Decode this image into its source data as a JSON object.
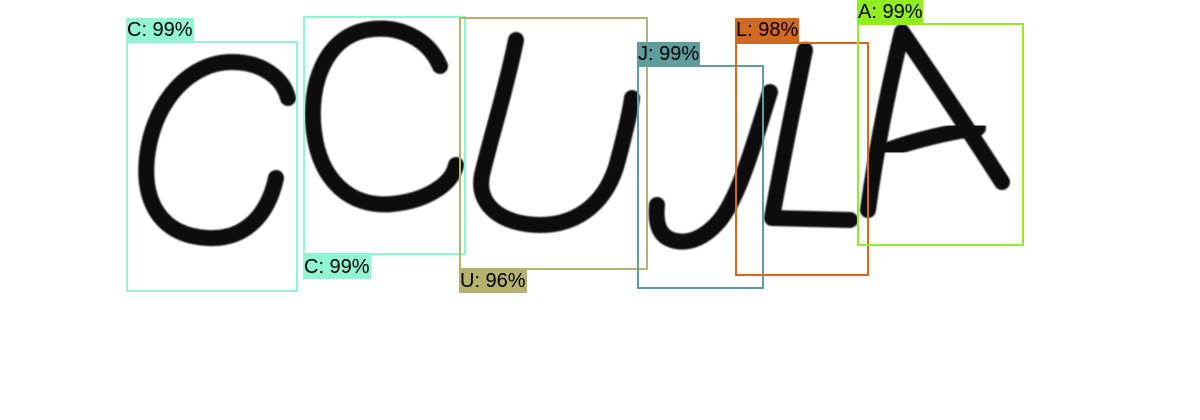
{
  "detections": [
    {
      "character": "C",
      "label": "C: 99%",
      "confidence": 0.99,
      "color": "#8ff5d2"
    },
    {
      "character": "C",
      "label": "C: 99%",
      "confidence": 0.99,
      "color": "#8ff5d2"
    },
    {
      "character": "U",
      "label": "U: 96%",
      "confidence": 0.96,
      "color": "#b5b26f"
    },
    {
      "character": "J",
      "label": "J: 99%",
      "confidence": 0.99,
      "color": "#5f9c9c"
    },
    {
      "character": "L",
      "label": "L: 98%",
      "confidence": 0.98,
      "color": "#d2691e"
    },
    {
      "character": "A",
      "label": "A: 99%",
      "confidence": 0.99,
      "color": "#90ee22"
    }
  ]
}
